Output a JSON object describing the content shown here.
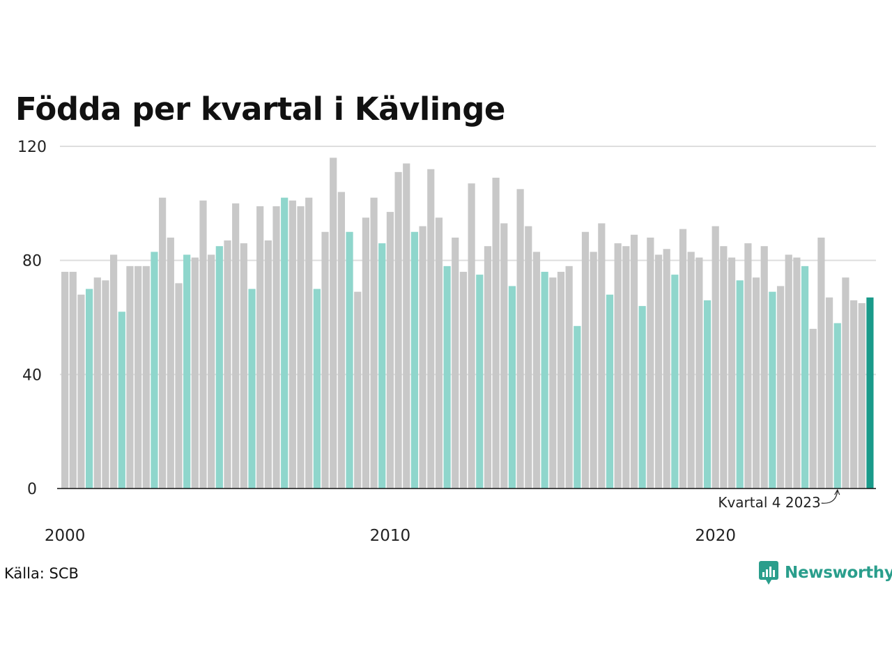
{
  "title": "Födda per kvartal i Kävlinge",
  "source": "Källa: SCB",
  "brand": "Newsworthy",
  "colors": {
    "base": "#c8c8c8",
    "q4": "#8fd6cc",
    "highlight": "#1a9a8a",
    "grid": "#dedede",
    "axis": "#111111",
    "brand": "#2a9e8c"
  },
  "chart_data": {
    "type": "bar",
    "title": "Födda per kvartal i Kävlinge",
    "xlabel": "",
    "ylabel": "",
    "ylim": [
      0,
      120
    ],
    "yticks": [
      0,
      40,
      80,
      120
    ],
    "x_tick_labels": [
      {
        "label": "2000",
        "year": 2000
      },
      {
        "label": "2010",
        "year": 2010
      },
      {
        "label": "2020",
        "year": 2020
      }
    ],
    "grid": true,
    "start": {
      "year": 2000,
      "quarter": 1
    },
    "values": [
      76,
      76,
      68,
      70,
      74,
      73,
      82,
      62,
      78,
      78,
      78,
      83,
      102,
      88,
      72,
      82,
      81,
      101,
      82,
      85,
      87,
      100,
      86,
      70,
      99,
      87,
      99,
      102,
      101,
      99,
      102,
      70,
      90,
      116,
      104,
      90,
      69,
      95,
      102,
      86,
      97,
      111,
      114,
      90,
      92,
      112,
      95,
      78,
      88,
      76,
      107,
      75,
      85,
      109,
      93,
      71,
      105,
      92,
      83,
      76,
      74,
      76,
      78,
      57,
      90,
      83,
      93,
      68,
      86,
      85,
      89,
      64,
      88,
      82,
      84,
      75,
      91,
      83,
      81,
      66,
      92,
      85,
      81,
      73,
      86,
      74,
      85,
      69,
      71,
      82,
      81,
      78,
      56,
      88,
      67,
      58,
      74,
      66,
      65,
      67
    ],
    "annotation": {
      "text": "Kvartal 4 2023",
      "index": 95
    }
  }
}
